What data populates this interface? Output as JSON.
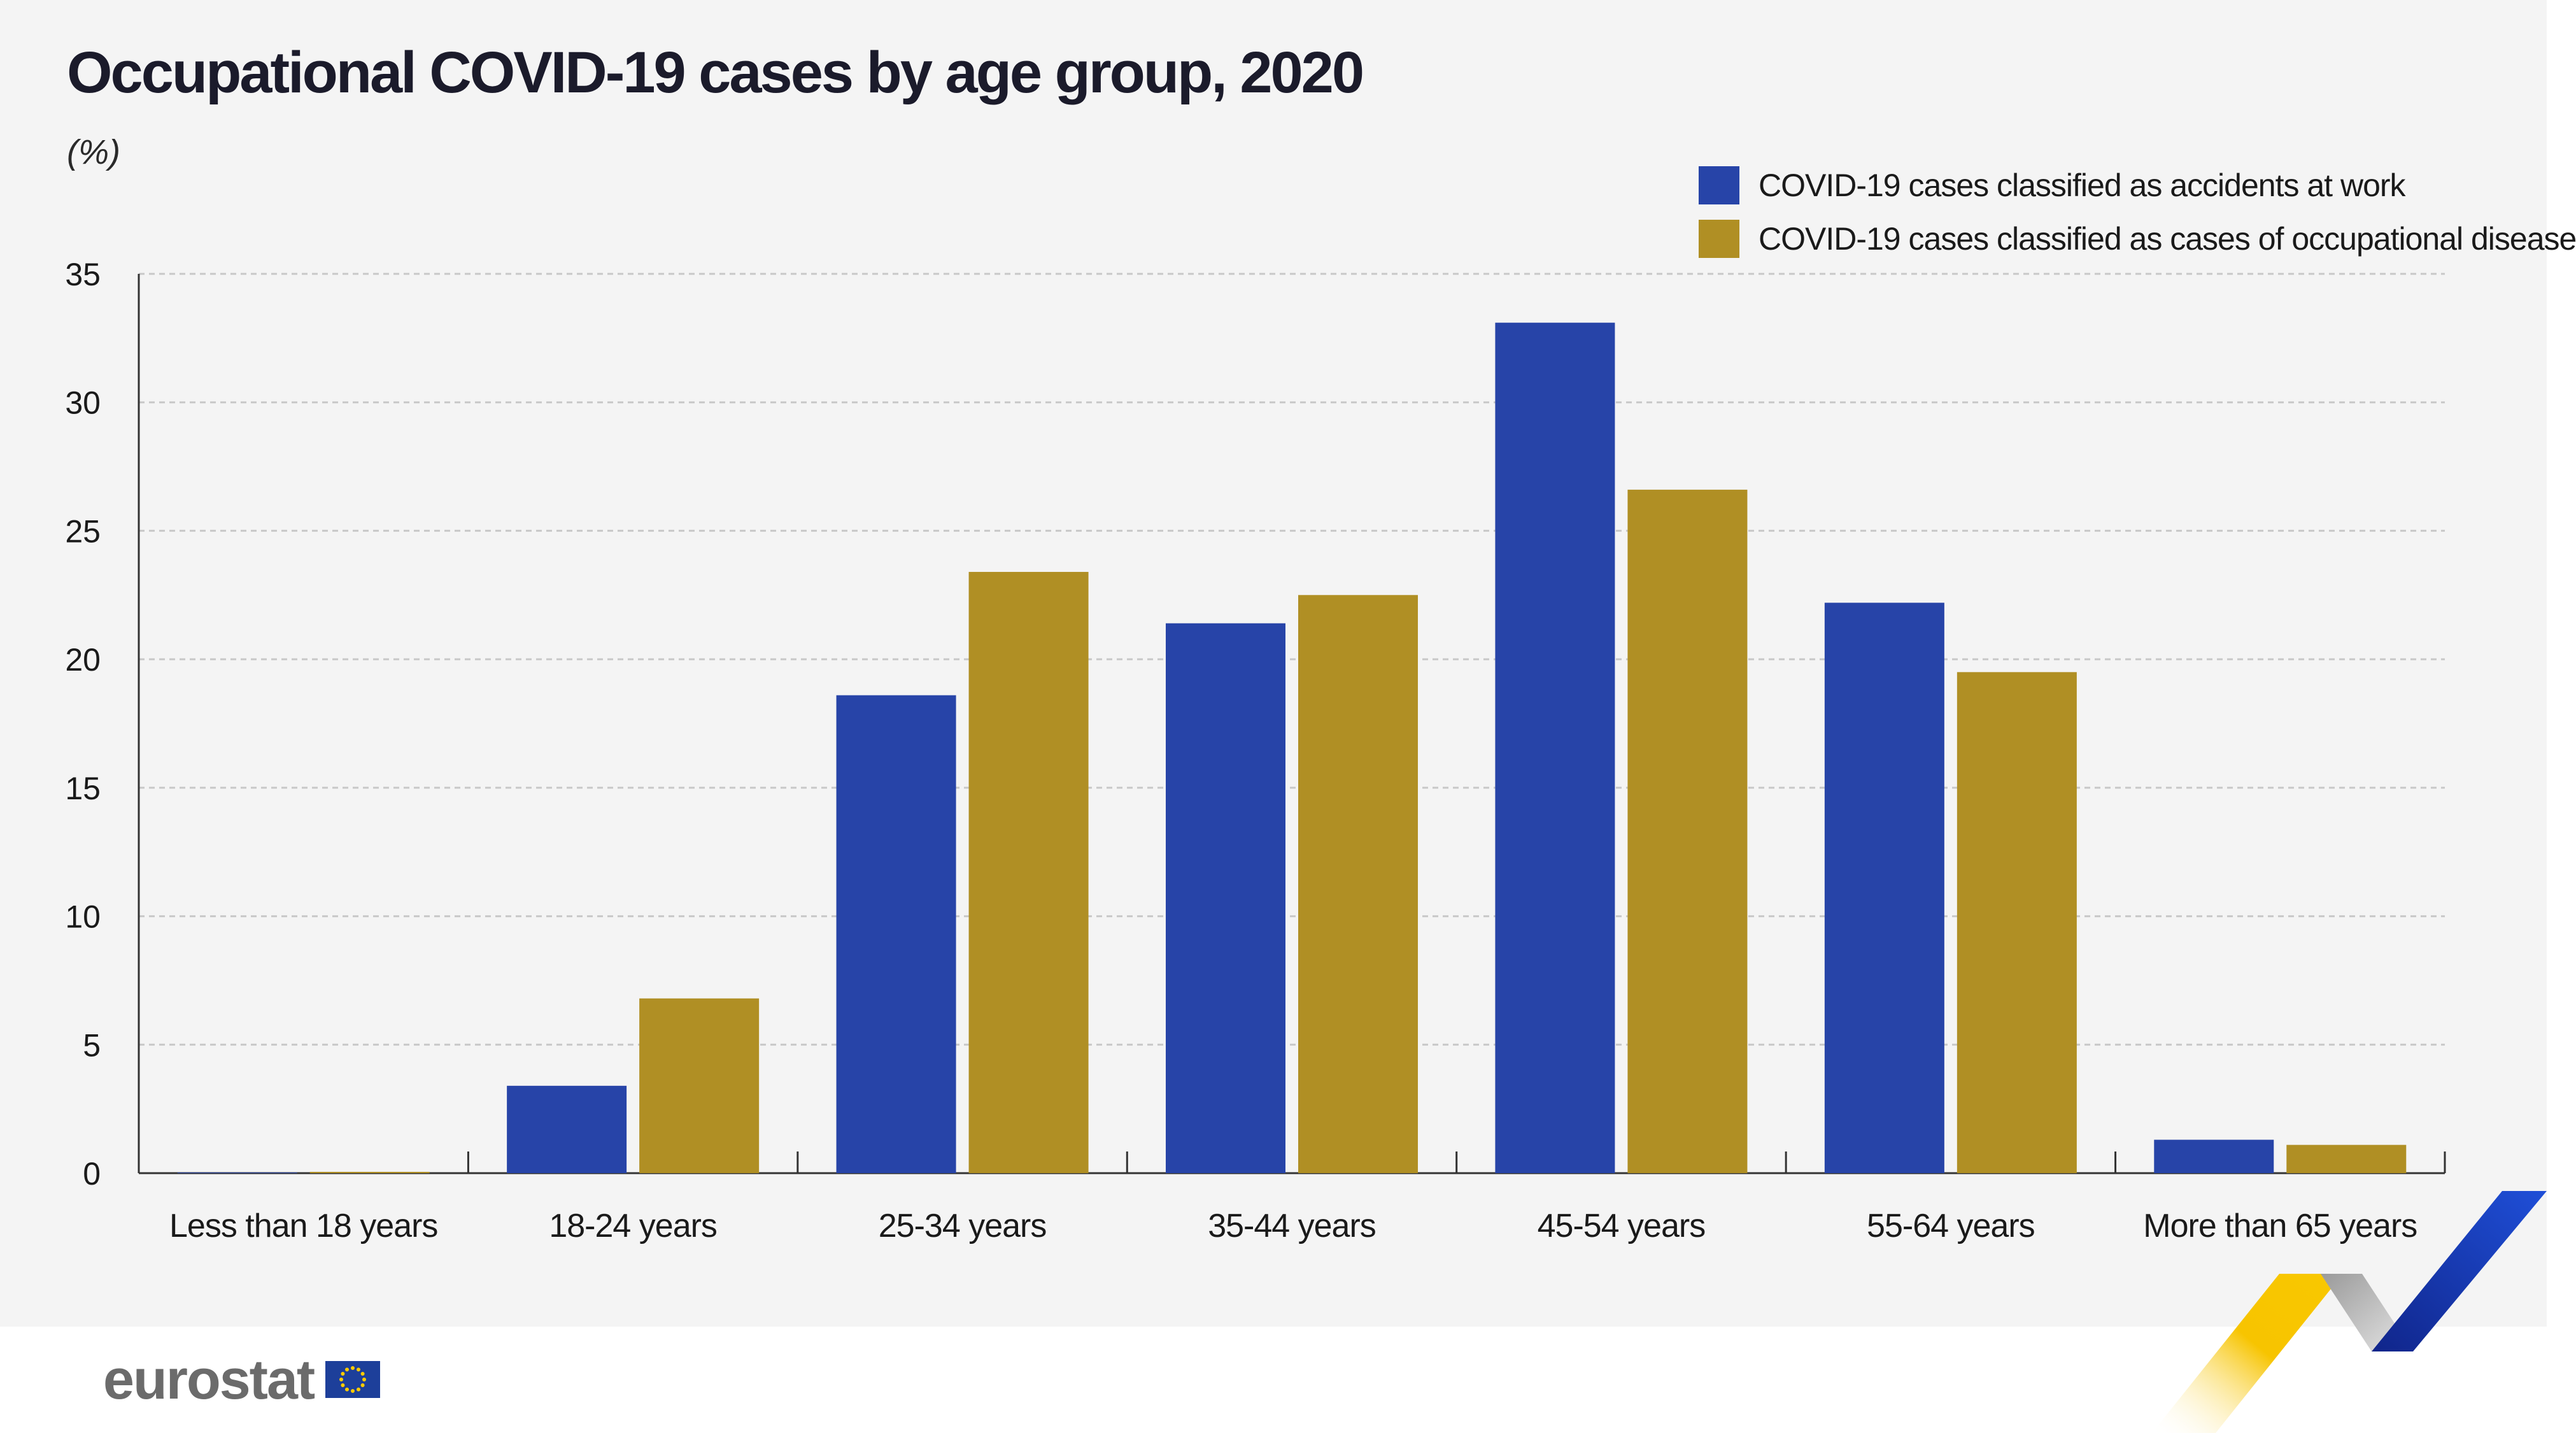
{
  "title": "Occupational COVID-19 cases by age group, 2020",
  "unit_label": "(%)",
  "brand": "eurostat",
  "colors": {
    "accidents": "#2744a8",
    "disease": "#b08f24",
    "background": "#f4f4f4",
    "grid": "#c8c8c8"
  },
  "chart_data": {
    "type": "bar",
    "title": "Occupational COVID-19 cases by age group, 2020",
    "ylabel": "(%)",
    "xlabel": "",
    "ylim": [
      0,
      35
    ],
    "yticks": [
      0,
      5,
      10,
      15,
      20,
      25,
      30,
      35
    ],
    "grid": true,
    "legend_position": "top-right",
    "categories": [
      "Less than 18 years",
      "18-24 years",
      "25-34 years",
      "35-44 years",
      "45-54 years",
      "55-64 years",
      "More than 65 years"
    ],
    "series": [
      {
        "name": "COVID-19 cases classified as accidents at work",
        "color": "#2744a8",
        "values": [
          0.0,
          3.4,
          18.6,
          21.4,
          33.1,
          22.2,
          1.3
        ]
      },
      {
        "name": "COVID-19 cases classified as cases of occupational disease",
        "color": "#b08f24",
        "values": [
          0.05,
          6.8,
          23.4,
          22.5,
          26.6,
          19.5,
          1.1
        ]
      }
    ]
  }
}
